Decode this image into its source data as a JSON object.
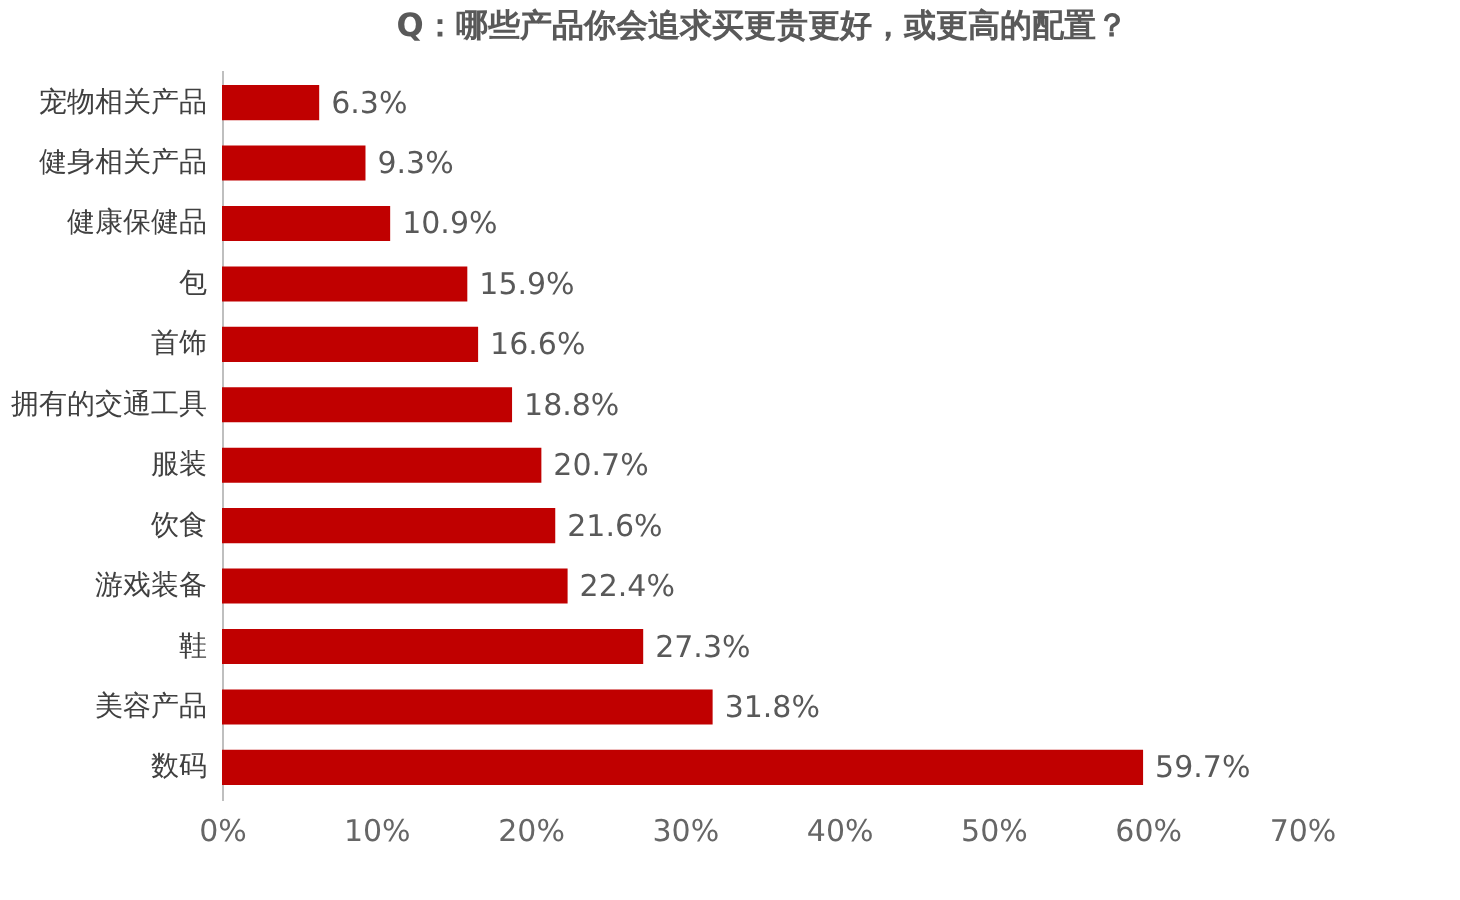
{
  "chart_data": {
    "type": "bar",
    "orientation": "horizontal",
    "title": "Q：哪些产品你会追求买更贵更好，或更高的配置？",
    "categories": [
      "宠物相关产品",
      "健身相关产品",
      "健康保健品",
      "包",
      "首饰",
      "拥有的交通工具",
      "服装",
      "饮食",
      "游戏装备",
      "鞋",
      "美容产品",
      "数码"
    ],
    "values": [
      6.3,
      9.3,
      10.9,
      15.9,
      16.6,
      18.8,
      20.7,
      21.6,
      22.4,
      27.3,
      31.8,
      59.7
    ],
    "value_labels": [
      "6.3%",
      "9.3%",
      "10.9%",
      "15.9%",
      "16.6%",
      "18.8%",
      "20.7%",
      "21.6%",
      "22.4%",
      "27.3%",
      "31.8%",
      "59.7%"
    ],
    "color": "#c00000",
    "xlim": [
      0,
      70
    ],
    "xticks": [
      {
        "value": 0,
        "label": "0%"
      },
      {
        "value": 10,
        "label": "10%"
      },
      {
        "value": 20,
        "label": "20%"
      },
      {
        "value": 30,
        "label": "30%"
      },
      {
        "value": 40,
        "label": "40%"
      },
      {
        "value": 50,
        "label": "50%"
      },
      {
        "value": 60,
        "label": "60%"
      },
      {
        "value": 70,
        "label": "70%"
      }
    ],
    "grid": false
  }
}
